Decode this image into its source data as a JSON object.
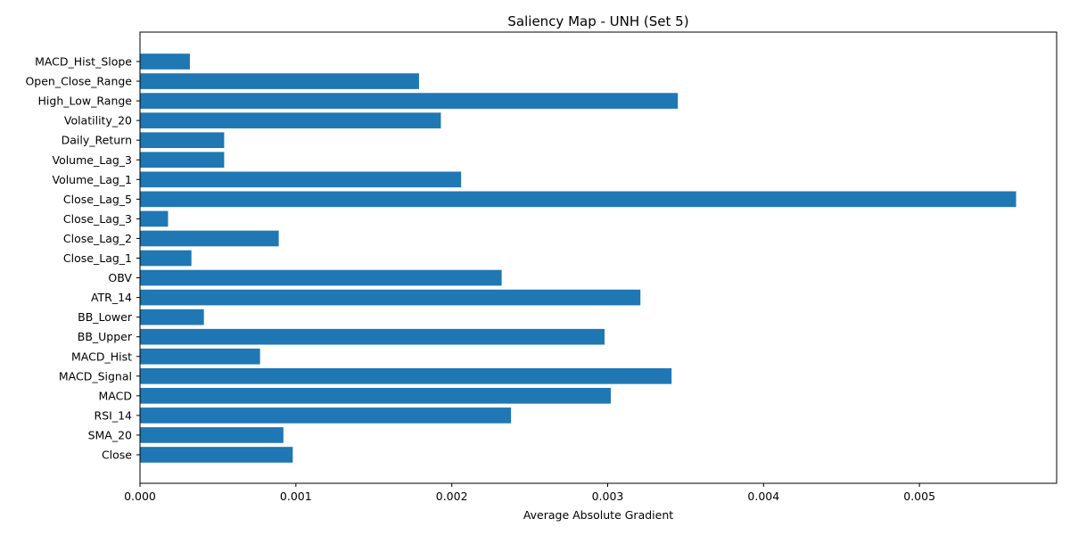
{
  "chart_data": {
    "type": "bar",
    "orientation": "horizontal",
    "title": "Saliency Map - UNH (Set 5)",
    "xlabel": "Average Absolute Gradient",
    "ylabel": "",
    "xlim": [
      0,
      0.00588
    ],
    "xticks": [
      0,
      0.001,
      0.002,
      0.003,
      0.004,
      0.005
    ],
    "xtick_labels": [
      "0.000",
      "0.001",
      "0.002",
      "0.003",
      "0.004",
      "0.005"
    ],
    "grid": false,
    "legend": "none",
    "bar_color": "#1f77b4",
    "categories": [
      "Close",
      "SMA_20",
      "RSI_14",
      "MACD",
      "MACD_Signal",
      "MACD_Hist",
      "BB_Upper",
      "BB_Lower",
      "ATR_14",
      "OBV",
      "Close_Lag_1",
      "Close_Lag_2",
      "Close_Lag_3",
      "Close_Lag_5",
      "Volume_Lag_1",
      "Volume_Lag_3",
      "Daily_Return",
      "Volatility_20",
      "High_Low_Range",
      "Open_Close_Range",
      "MACD_Hist_Slope"
    ],
    "values": [
      0.00098,
      0.00092,
      0.00238,
      0.00302,
      0.00341,
      0.00077,
      0.00298,
      0.00041,
      0.00321,
      0.00232,
      0.00033,
      0.00089,
      0.00018,
      0.00562,
      0.00206,
      0.00054,
      0.00054,
      0.00193,
      0.00345,
      0.00179,
      0.00032
    ]
  }
}
